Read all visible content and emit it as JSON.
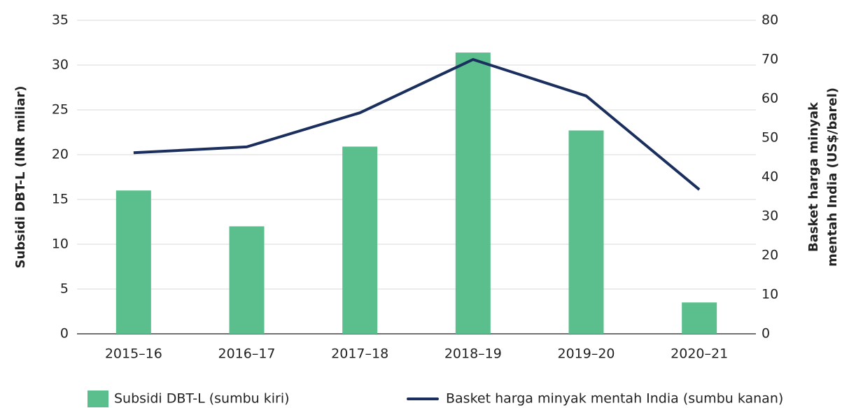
{
  "chart_data": {
    "type": "bar_line",
    "categories": [
      "2015–16",
      "2016–17",
      "2017–18",
      "2018–19",
      "2019–20",
      "2020–21"
    ],
    "series": [
      {
        "name": "Subsidi DBT-L (sumbu kiri)",
        "type": "bar",
        "color": "#5abf8c",
        "values": [
          16.0,
          12.0,
          20.9,
          31.4,
          22.7,
          3.5
        ]
      },
      {
        "name": "Basket harga minyak mentah India (sumbu kanan)",
        "type": "line",
        "axis": "y2",
        "color": "#1b2f5e",
        "values": [
          46.2,
          47.7,
          56.4,
          70.0,
          60.7,
          36.8
        ]
      }
    ],
    "y_label": "Subsidi DBT-L (INR miliar)",
    "y2_label": [
      "Basket harga minyak",
      "mentah India (US$/barel)"
    ],
    "ylim": [
      0,
      35
    ],
    "yticks": [
      0,
      5,
      10,
      15,
      20,
      25,
      30,
      35
    ],
    "y2lim": [
      0,
      80
    ],
    "y2ticks": [
      0,
      10,
      20,
      30,
      40,
      50,
      60,
      70,
      80
    ],
    "grid": true,
    "legend": "bottom"
  }
}
